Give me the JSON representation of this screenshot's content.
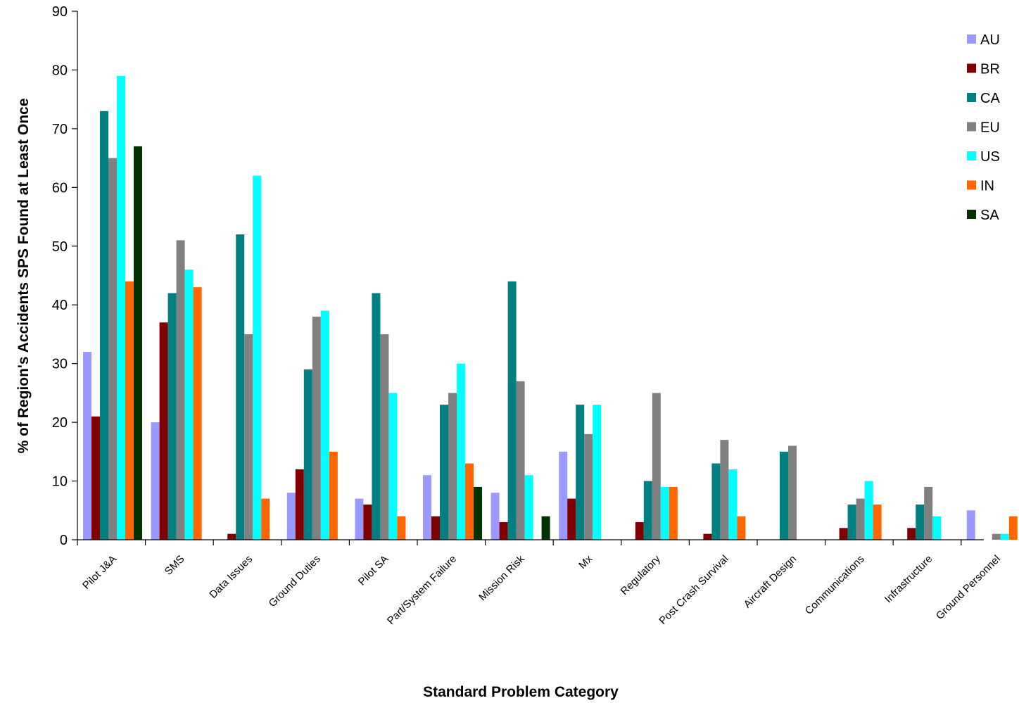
{
  "chart_data": {
    "type": "bar",
    "title": "",
    "xlabel": "Standard Problem Category",
    "ylabel": "% of Region's Accidents SPS Found at Least Once",
    "ylim": [
      0,
      90
    ],
    "yticks": [
      0,
      10,
      20,
      30,
      40,
      50,
      60,
      70,
      80,
      90
    ],
    "grid": false,
    "legend_position": "top-right",
    "categories": [
      "Pilot J&A",
      "SMS",
      "Data Issues",
      "Ground Duties",
      "Pilot SA",
      "Part/System Failure",
      "Mission Risk",
      "Mx",
      "Regulatory",
      "Post Crash Survival",
      "Aircraft Design",
      "Communications",
      "Infrastructure",
      "Ground Personnel"
    ],
    "series": [
      {
        "name": "AU",
        "color": "#9999ff",
        "values": [
          32,
          20,
          0,
          8,
          7,
          11,
          8,
          15,
          0,
          0,
          0,
          0,
          0,
          5
        ]
      },
      {
        "name": "BR",
        "color": "#800000",
        "values": [
          21,
          37,
          1,
          12,
          6,
          4,
          3,
          7,
          3,
          1,
          0,
          2,
          2,
          0
        ]
      },
      {
        "name": "CA",
        "color": "#008080",
        "values": [
          73,
          42,
          52,
          29,
          42,
          23,
          44,
          23,
          10,
          13,
          15,
          6,
          6,
          0
        ]
      },
      {
        "name": "EU",
        "color": "#808080",
        "values": [
          65,
          51,
          35,
          38,
          35,
          25,
          27,
          18,
          25,
          17,
          16,
          7,
          9,
          1
        ]
      },
      {
        "name": "US",
        "color": "#00ffff",
        "values": [
          79,
          46,
          62,
          39,
          25,
          30,
          11,
          23,
          9,
          12,
          0,
          10,
          4,
          1
        ]
      },
      {
        "name": "IN",
        "color": "#ff6600",
        "values": [
          44,
          43,
          7,
          15,
          4,
          13,
          0,
          0,
          9,
          4,
          0,
          6,
          0,
          4
        ]
      },
      {
        "name": "SA",
        "color": "#003300",
        "values": [
          67,
          0,
          0,
          0,
          0,
          9,
          4,
          0,
          0,
          0,
          0,
          0,
          0,
          0
        ]
      }
    ]
  }
}
